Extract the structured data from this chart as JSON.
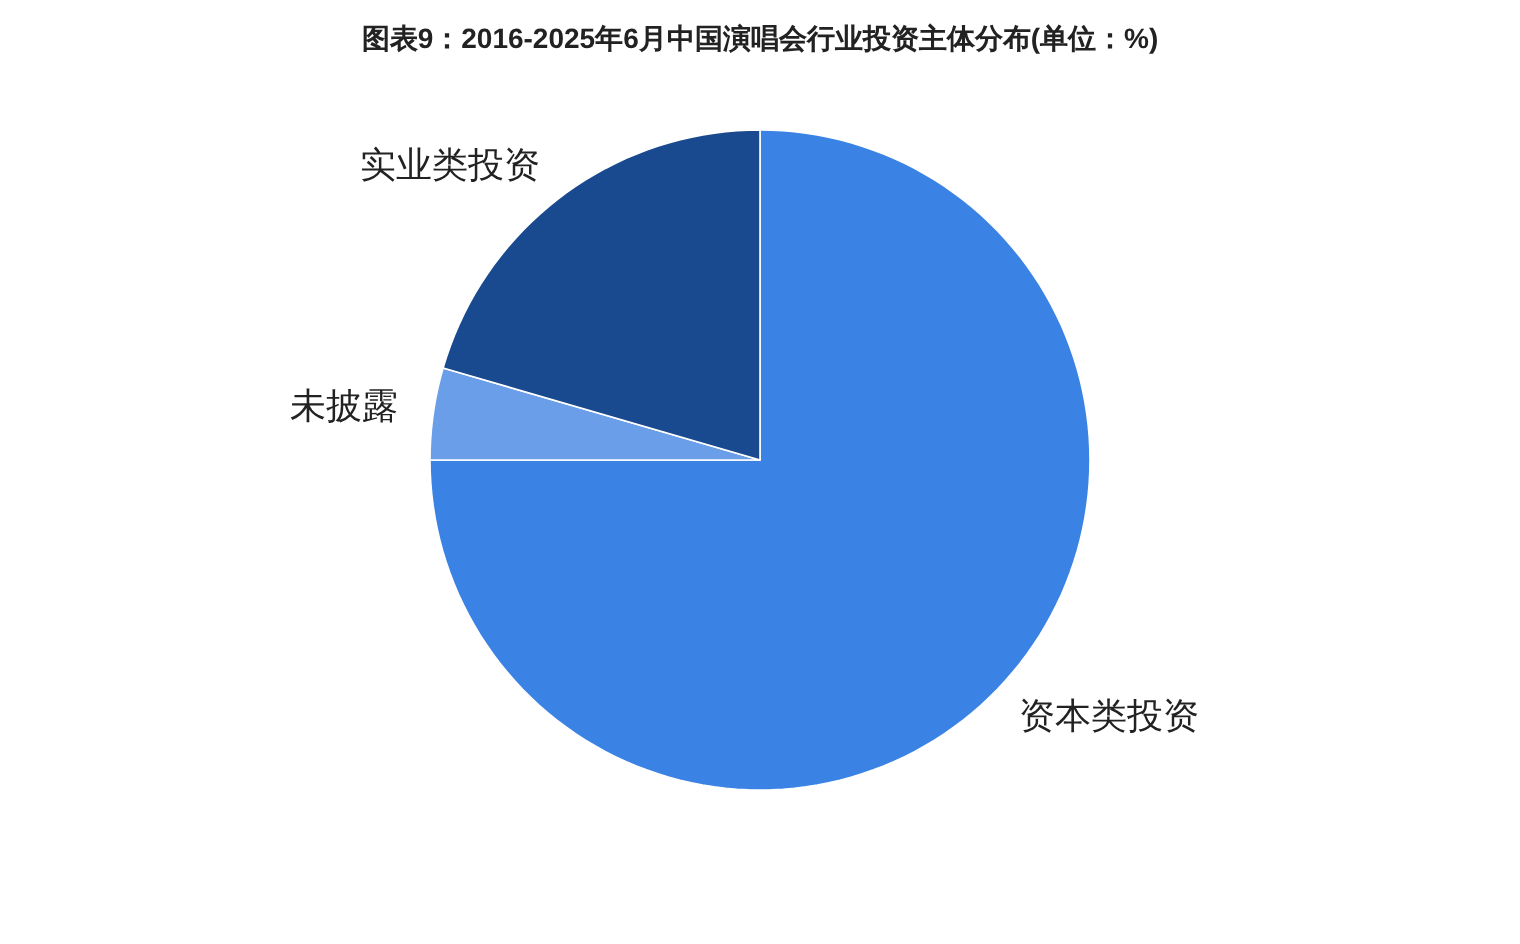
{
  "chart_data": {
    "type": "pie",
    "title": "图表9：2016-2025年6月中国演唱会行业投资主体分布(单位：%)",
    "categories": [
      "资本类投资",
      "未披露",
      "实业类投资"
    ],
    "values": [
      75,
      4.5,
      20.5
    ],
    "colors": [
      "#3a82e3",
      "#6a9ee8",
      "#19498e"
    ]
  }
}
